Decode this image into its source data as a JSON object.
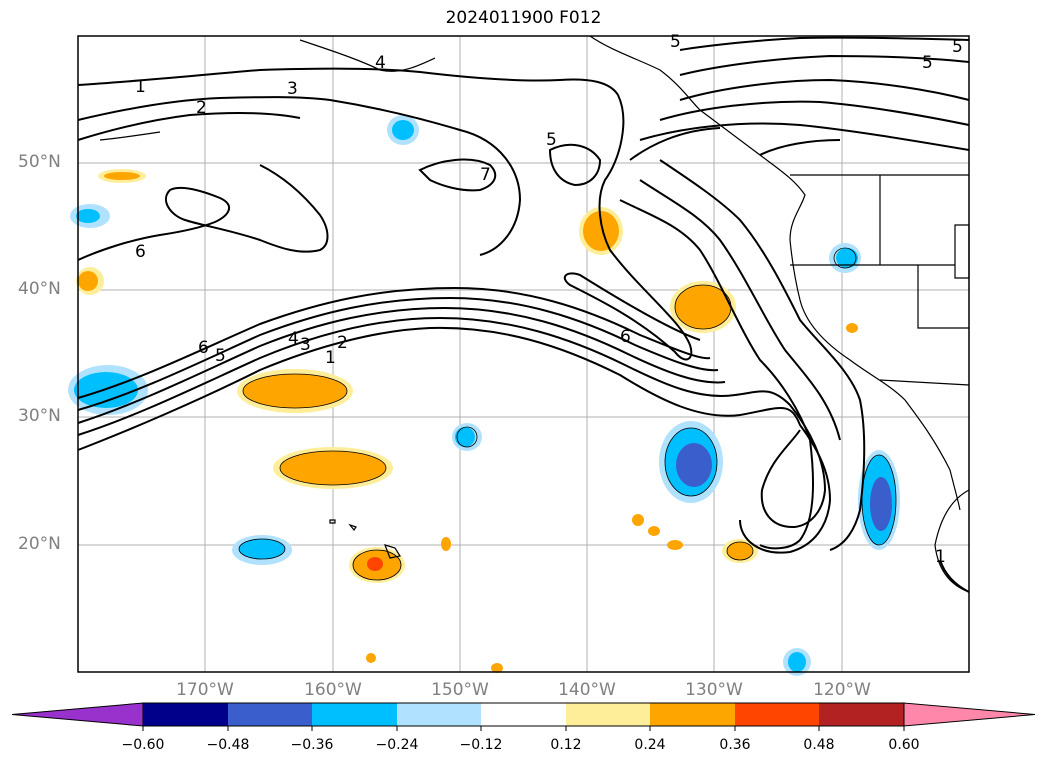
{
  "title": "2024011900 F012",
  "lat_labels": [
    "50°N",
    "40°N",
    "30°N",
    "20°N"
  ],
  "lon_labels": [
    "170°W",
    "160°W",
    "150°W",
    "140°W",
    "130°W",
    "120°W"
  ],
  "colorbar": {
    "colors": [
      "#9932cc",
      "#00008b",
      "#3a5fcd",
      "#00bfff",
      "#b0e2ff",
      "#ffffff",
      "#ffee99",
      "#ffa500",
      "#ff4500",
      "#b22222",
      "#ff88aa"
    ],
    "ticks": [
      "−0.60",
      "−0.48",
      "−0.36",
      "−0.24",
      "−0.12",
      "0.12",
      "0.24",
      "0.36",
      "0.48",
      "0.60"
    ]
  },
  "contour_labels": [
    "1",
    "2",
    "3",
    "4",
    "5",
    "6",
    "7",
    "5",
    "6",
    "1",
    "2",
    "3",
    "4",
    "5",
    "6",
    "1",
    "5",
    "5"
  ],
  "colors": {
    "contour": "#000000",
    "grid": "#b0b0b0",
    "axis_label": "#808080"
  }
}
